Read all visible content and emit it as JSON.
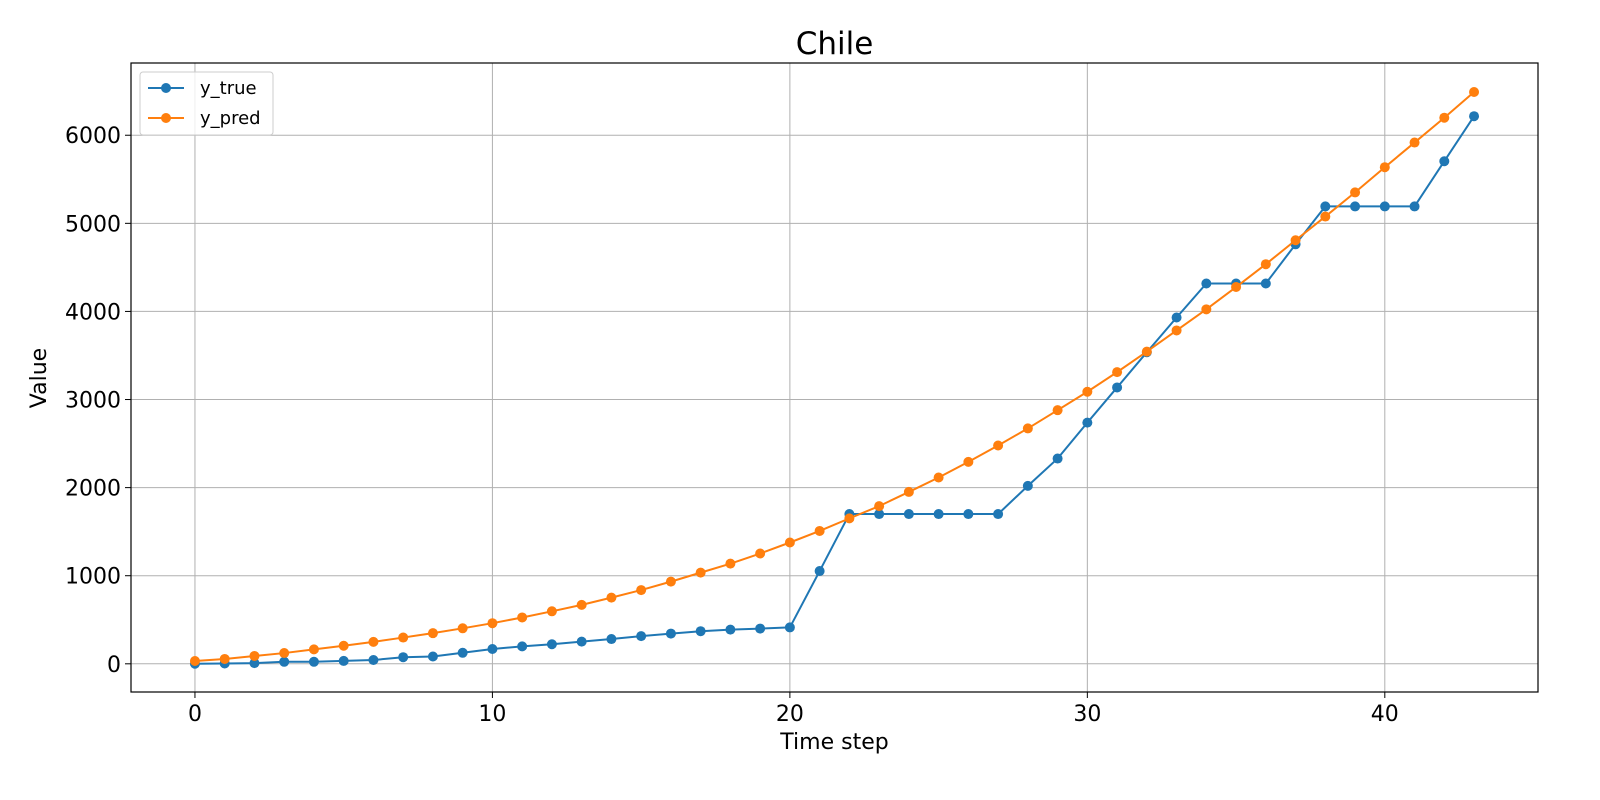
{
  "chart_data": {
    "type": "line",
    "title": "Chile",
    "xlabel": "Time step",
    "ylabel": "Value",
    "xlim": [
      -2.15,
      45.15
    ],
    "ylim": [
      -320,
      6820
    ],
    "xticks": [
      0,
      10,
      20,
      30,
      40
    ],
    "yticks": [
      0,
      1000,
      2000,
      3000,
      4000,
      5000,
      6000
    ],
    "grid": true,
    "legend_position": "upper left",
    "x": [
      0,
      1,
      2,
      3,
      4,
      5,
      6,
      7,
      8,
      9,
      10,
      11,
      12,
      13,
      14,
      15,
      16,
      17,
      18,
      19,
      20,
      21,
      22,
      23,
      24,
      25,
      26,
      27,
      28,
      29,
      30,
      31,
      32,
      33,
      34,
      35,
      36,
      37,
      38,
      39,
      40,
      41,
      42,
      43
    ],
    "series": [
      {
        "name": "y_true",
        "color": "#1f77b4",
        "values": [
          1,
          4,
          8,
          23,
          23,
          33,
          43,
          75,
          83,
          125,
          168,
          198,
          222,
          252,
          281,
          314,
          343,
          370,
          388,
          400,
          413,
          1053,
          1700,
          1700,
          1700,
          1700,
          1700,
          1700,
          2020,
          2330,
          2738,
          3137,
          3537,
          3931,
          4317,
          4317,
          4317,
          4762,
          5192,
          5192,
          5192,
          5192,
          5705,
          6216
        ]
      },
      {
        "name": "y_pred",
        "color": "#ff7f0e",
        "values": [
          32,
          55,
          89,
          122,
          164,
          205,
          249,
          298,
          348,
          403,
          461,
          526,
          596,
          669,
          751,
          837,
          933,
          1035,
          1137,
          1252,
          1377,
          1508,
          1651,
          1790,
          1951,
          2115,
          2292,
          2478,
          2672,
          2879,
          3088,
          3311,
          3544,
          3784,
          4024,
          4277,
          4536,
          4808,
          5077,
          5351,
          5637,
          5917,
          6199,
          6491
        ]
      }
    ]
  }
}
